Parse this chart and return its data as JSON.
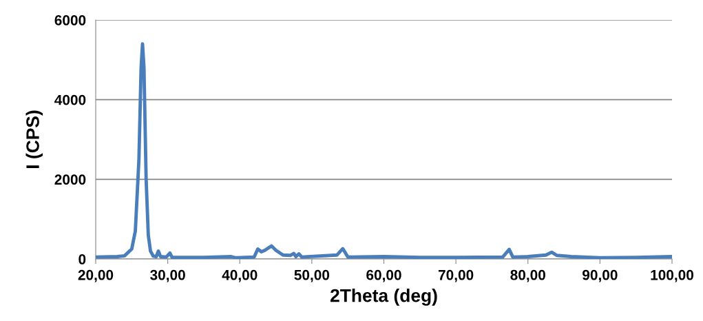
{
  "chart_data": {
    "type": "line",
    "xlabel": "2Theta (deg)",
    "ylabel": "I (CPS)",
    "xlim": [
      20,
      100
    ],
    "xticks": [
      {
        "value": 20,
        "label": "20,00"
      },
      {
        "value": 30,
        "label": "30,00"
      },
      {
        "value": 40,
        "label": "40,00"
      },
      {
        "value": 50,
        "label": "50,00"
      },
      {
        "value": 60,
        "label": "60,00"
      },
      {
        "value": 70,
        "label": "70,00"
      },
      {
        "value": 80,
        "label": "80,00"
      },
      {
        "value": 90,
        "label": "90,00"
      },
      {
        "value": 100,
        "label": "100,00"
      }
    ],
    "ylim": [
      0,
      6000
    ],
    "yticks": [
      0,
      2000,
      4000,
      6000
    ],
    "grid": "y",
    "marker": "none",
    "line_style": "solid",
    "series": [
      {
        "color": "#4a7ebb",
        "x": [
          20,
          23,
          24,
          25,
          25.5,
          26,
          26.3,
          26.5,
          26.7,
          27,
          27.3,
          27.6,
          28,
          28.4,
          28.7,
          29,
          29.8,
          30.3,
          30.6,
          35,
          38.8,
          39.5,
          42,
          42.5,
          43,
          43.5,
          44.4,
          45,
          46,
          47,
          47.5,
          47.8,
          48.2,
          48.6,
          53.5,
          54.3,
          55,
          60,
          65,
          70,
          76.5,
          77.4,
          77.9,
          80,
          82.5,
          83.3,
          84,
          86,
          90,
          95,
          100
        ],
        "values": [
          50,
          60,
          80,
          250,
          700,
          2500,
          4800,
          5400,
          4800,
          2000,
          600,
          200,
          70,
          60,
          200,
          60,
          50,
          150,
          40,
          40,
          60,
          30,
          50,
          250,
          180,
          220,
          330,
          220,
          100,
          90,
          140,
          60,
          130,
          50,
          100,
          260,
          50,
          60,
          40,
          40,
          50,
          240,
          50,
          60,
          100,
          170,
          90,
          60,
          30,
          40,
          60
        ]
      }
    ]
  }
}
